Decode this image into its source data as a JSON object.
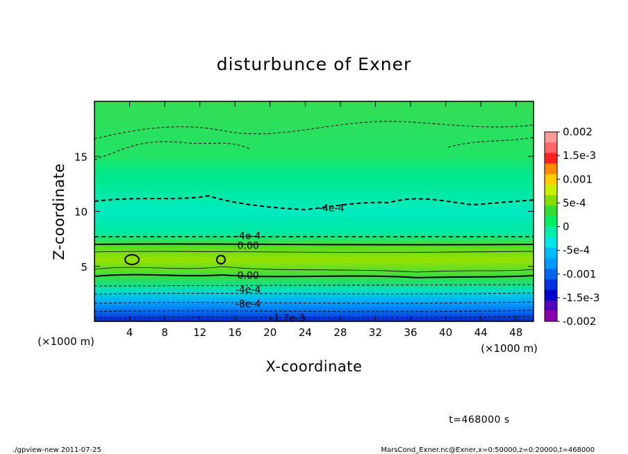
{
  "chart_data": {
    "type": "heatmap",
    "title": "disturbunce of Exner",
    "xlabel": "X-coordinate",
    "ylabel": "Z-coordinate",
    "x_units": "(×1000 m)",
    "y_units": "(×1000 m)",
    "xlim": [
      0,
      50
    ],
    "ylim": [
      0,
      20
    ],
    "x_ticks": [
      4,
      8,
      12,
      16,
      20,
      24,
      28,
      32,
      36,
      40,
      44,
      48
    ],
    "y_ticks": [
      5,
      10,
      15
    ],
    "colorbar": {
      "range": [
        -0.002,
        0.002
      ],
      "labels": [
        "0.002",
        "1.5e-3",
        "0.001",
        "5e-4",
        "0",
        "-5e-4",
        "-0.001",
        "-1.5e-3",
        "-0.002"
      ],
      "colors": [
        "#ff9999",
        "#ff6666",
        "#ff2222",
        "#ff8800",
        "#ffcc00",
        "#ccee00",
        "#88dd00",
        "#33dd33",
        "#00ee66",
        "#00eeaa",
        "#00e6e6",
        "#00bbff",
        "#0099ff",
        "#0066ee",
        "#0033dd",
        "#0000cc",
        "#5500bb",
        "#8800aa"
      ]
    },
    "contour_labels": [
      {
        "text": "-4e-4",
        "x": 27,
        "z": 10.3
      },
      {
        "text": "-4e-4",
        "x": 17.5,
        "z": 7.8
      },
      {
        "text": "0.00",
        "x": 17.5,
        "z": 6.9
      },
      {
        "text": "0.00",
        "x": 17.5,
        "z": 4.2
      },
      {
        "text": "-4e-4",
        "x": 17.5,
        "z": 2.9
      },
      {
        "text": "-8e-4",
        "x": 17.5,
        "z": 1.6
      },
      {
        "text": "-1.2e-3",
        "x": 22,
        "z": 0.3
      }
    ],
    "time_label": "t=468000 s",
    "footer_left": "./gpview-new   2011-07-25",
    "footer_right": "MarsCond_Exner.nc@Exner,x=0:50000,z=0:20000,t=468000"
  }
}
